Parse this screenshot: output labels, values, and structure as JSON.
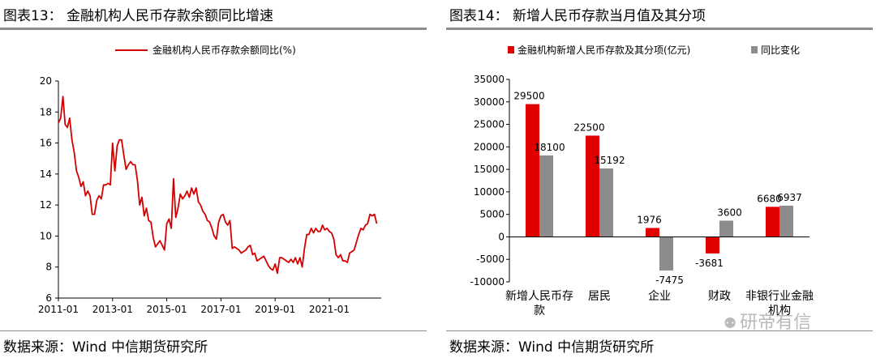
{
  "left_panel": {
    "title": "图表13： 金融机构人民币存款余额同比增速",
    "source": "数据来源：Wind 中信期货研究所"
  },
  "right_panel": {
    "title": "图表14： 新增人民币存款当月值及其分项",
    "source": "数据来源：Wind 中信期货研究所"
  },
  "watermark": {
    "icon": "wechat-icon",
    "text": "研帝有信"
  },
  "chart_data": [
    {
      "type": "line",
      "title": "",
      "xlabel": "",
      "ylabel": "",
      "ylim": [
        6,
        20
      ],
      "yticks": [
        "6",
        "8",
        "10",
        "12",
        "14",
        "16",
        "18",
        "20"
      ],
      "xticks": [
        "2011-01",
        "2013-01",
        "2015-01",
        "2017-01",
        "2019-01",
        "2021-01"
      ],
      "xlim": [
        "2011-01",
        "2022-12"
      ],
      "legend_position": "top",
      "grid": false,
      "colors": {
        "line": "#d40000"
      },
      "series": [
        {
          "name": "金融机构人民币存款余额同比(%)",
          "x": [
            "2011-01",
            "2011-02",
            "2011-03",
            "2011-04",
            "2011-05",
            "2011-06",
            "2011-07",
            "2011-08",
            "2011-09",
            "2011-10",
            "2011-11",
            "2011-12",
            "2012-01",
            "2012-02",
            "2012-03",
            "2012-04",
            "2012-05",
            "2012-06",
            "2012-07",
            "2012-08",
            "2012-09",
            "2012-10",
            "2012-11",
            "2012-12",
            "2013-01",
            "2013-02",
            "2013-03",
            "2013-04",
            "2013-05",
            "2013-06",
            "2013-07",
            "2013-08",
            "2013-09",
            "2013-10",
            "2013-11",
            "2013-12",
            "2014-01",
            "2014-02",
            "2014-03",
            "2014-04",
            "2014-05",
            "2014-06",
            "2014-07",
            "2014-08",
            "2014-09",
            "2014-10",
            "2014-11",
            "2014-12",
            "2015-01",
            "2015-02",
            "2015-03",
            "2015-04",
            "2015-05",
            "2015-06",
            "2015-07",
            "2015-08",
            "2015-09",
            "2015-10",
            "2015-11",
            "2015-12",
            "2016-01",
            "2016-02",
            "2016-03",
            "2016-04",
            "2016-05",
            "2016-06",
            "2016-07",
            "2016-08",
            "2016-09",
            "2016-10",
            "2016-11",
            "2016-12",
            "2017-01",
            "2017-02",
            "2017-03",
            "2017-04",
            "2017-05",
            "2017-06",
            "2017-07",
            "2017-08",
            "2017-09",
            "2017-10",
            "2017-11",
            "2017-12",
            "2018-01",
            "2018-02",
            "2018-03",
            "2018-04",
            "2018-05",
            "2018-06",
            "2018-07",
            "2018-08",
            "2018-09",
            "2018-10",
            "2018-11",
            "2018-12",
            "2019-01",
            "2019-02",
            "2019-03",
            "2019-04",
            "2019-05",
            "2019-06",
            "2019-07",
            "2019-08",
            "2019-09",
            "2019-10",
            "2019-11",
            "2019-12",
            "2020-01",
            "2020-02",
            "2020-03",
            "2020-04",
            "2020-05",
            "2020-06",
            "2020-07",
            "2020-08",
            "2020-09",
            "2020-10",
            "2020-11",
            "2020-12",
            "2021-01",
            "2021-02",
            "2021-03",
            "2021-04",
            "2021-05",
            "2021-06",
            "2021-07",
            "2021-08",
            "2021-09",
            "2021-10",
            "2021-11",
            "2021-12",
            "2022-01",
            "2022-02",
            "2022-03",
            "2022-04",
            "2022-05",
            "2022-06",
            "2022-07",
            "2022-08",
            "2022-09",
            "2022-10"
          ],
          "values": [
            17.3,
            17.6,
            19.0,
            17.2,
            17.0,
            17.6,
            16.2,
            15.4,
            14.2,
            13.8,
            13.2,
            13.5,
            12.6,
            12.9,
            12.6,
            11.4,
            11.4,
            12.3,
            12.6,
            12.4,
            13.3,
            13.3,
            13.4,
            13.3,
            16.0,
            14.2,
            15.8,
            16.2,
            16.2,
            15.2,
            14.3,
            14.6,
            14.8,
            14.6,
            14.6,
            13.6,
            12.0,
            12.5,
            11.3,
            11.8,
            11.0,
            10.9,
            9.9,
            9.3,
            9.5,
            9.7,
            9.4,
            9.1,
            10.8,
            11.1,
            10.5,
            13.7,
            11.2,
            11.8,
            12.7,
            12.4,
            12.6,
            12.9,
            12.5,
            13.1,
            12.7,
            13.1,
            12.2,
            12.0,
            11.6,
            11.4,
            11.0,
            10.9,
            10.5,
            10.0,
            9.8,
            10.9,
            11.3,
            11.4,
            10.9,
            10.7,
            11.0,
            9.2,
            9.3,
            9.2,
            9.1,
            8.9,
            9.0,
            9.1,
            9.3,
            9.4,
            8.8,
            8.9,
            8.4,
            8.5,
            8.6,
            8.7,
            8.4,
            8.1,
            7.9,
            7.8,
            8.2,
            7.6,
            8.6,
            8.6,
            8.5,
            8.4,
            8.3,
            8.5,
            8.3,
            8.6,
            8.2,
            8.6,
            8.0,
            9.2,
            10.1,
            10.1,
            10.5,
            10.2,
            10.5,
            10.3,
            10.3,
            10.7,
            10.4,
            10.5,
            10.3,
            10.2,
            9.8,
            8.8,
            8.6,
            8.8,
            8.4,
            8.4,
            8.3,
            8.9,
            9.0,
            9.1,
            9.6,
            10.1,
            10.5,
            10.4,
            10.7,
            10.8,
            11.4,
            11.3,
            11.4,
            10.8
          ]
        }
      ]
    },
    {
      "type": "bar",
      "title": "",
      "xlabel": "",
      "ylabel": "",
      "ylim": [
        -10000,
        35000
      ],
      "yticks": [
        "-10000",
        "-5000",
        "0",
        "5000",
        "10000",
        "15000",
        "20000",
        "25000",
        "30000",
        "35000"
      ],
      "categories": [
        "新增人民币存款",
        "居民",
        "企业",
        "财政",
        "非银行业金融机构"
      ],
      "legend_position": "top",
      "grid": false,
      "colors": {
        "series1": "#e00000",
        "series2": "#8c8c8c"
      },
      "series": [
        {
          "name": "金融机构新增人民币存款及其分项(亿元)",
          "values": [
            29500,
            22500,
            1976,
            -3681,
            6680
          ]
        },
        {
          "name": "同比变化",
          "values": [
            18100,
            15192,
            -7475,
            3600,
            6937
          ]
        }
      ]
    }
  ]
}
